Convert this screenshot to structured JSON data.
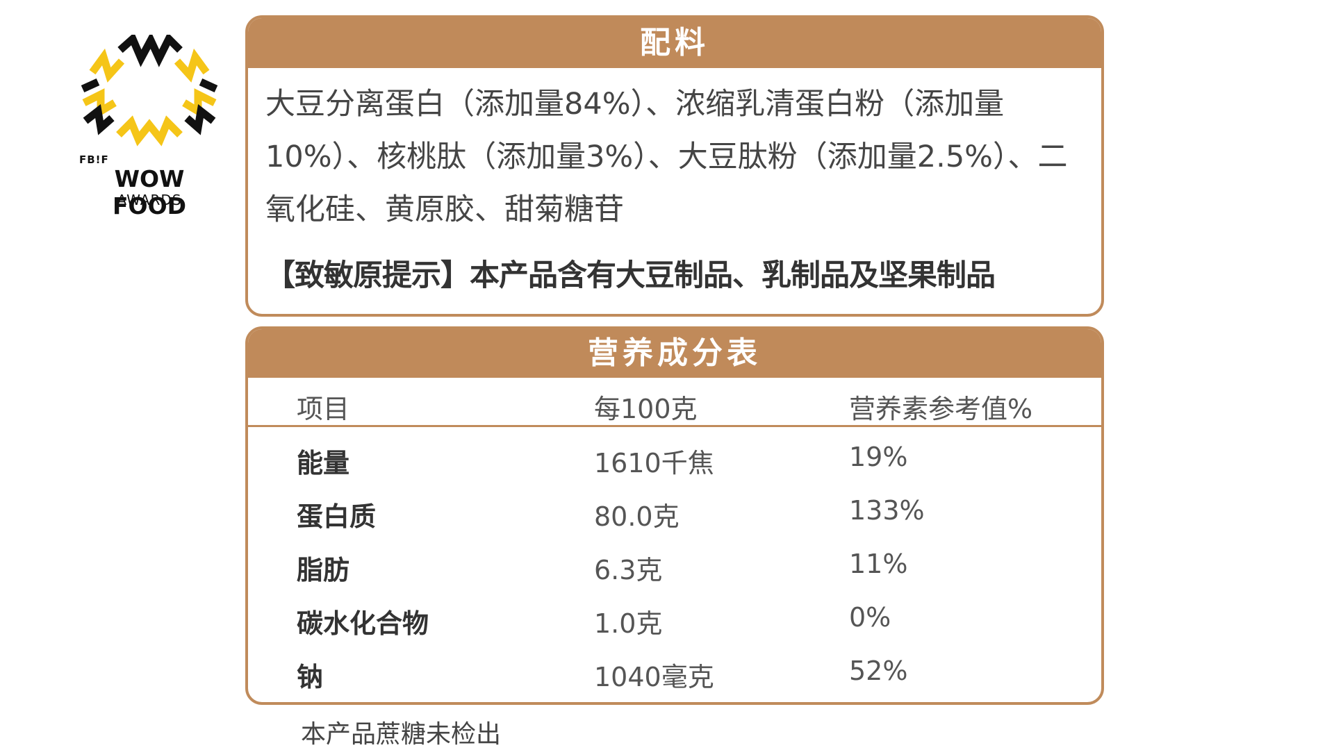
{
  "logo": {
    "top_label": "FB!F",
    "name": "WOW FOOD",
    "sub": "AWARDS",
    "colors": {
      "burst_yellow": "#f5c518",
      "burst_black": "#111111"
    }
  },
  "ingredients": {
    "title": "配料",
    "text": "大豆分离蛋白（添加量84%）、浓缩乳清蛋白粉（添加量10%）、核桃肽（添加量3%）、大豆肽粉（添加量2.5%）、二氧化硅、黄原胶、甜菊糖苷",
    "allergen": "【致敏原提示】本产品含有大豆制品、乳制品及坚果制品"
  },
  "nutrition": {
    "title": "营养成分表",
    "headers": [
      "项目",
      "每100克",
      "营养素参考值%"
    ],
    "rows": [
      [
        "能量",
        "1610千焦",
        "19%"
      ],
      [
        "蛋白质",
        "80.0克",
        "133%"
      ],
      [
        "脂肪",
        "6.3克",
        "11%"
      ],
      [
        "碳水化合物",
        "1.0克",
        "0%"
      ],
      [
        "钠",
        "1040毫克",
        "52%"
      ]
    ]
  },
  "footnote": "本产品蔗糖未检出",
  "colors": {
    "accent": "#c08a5a",
    "text": "#454545"
  }
}
